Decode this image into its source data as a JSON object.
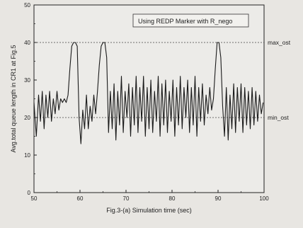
{
  "chart_data": {
    "type": "line",
    "title": "",
    "xlabel": "Fig.3-(a) Simulation time (sec)",
    "ylabel": "Avg.total queue length in CR1 at Fig.5",
    "xlim": [
      50,
      100
    ],
    "ylim": [
      0,
      50
    ],
    "x_ticks": [
      "50",
      "60",
      "70",
      "80",
      "90",
      "100"
    ],
    "y_ticks": [
      "0",
      "10",
      "20",
      "30",
      "40",
      "50"
    ],
    "legend": {
      "text": "Using REDP Marker with R_nego",
      "position": "top-right"
    },
    "reference_lines": [
      {
        "name": "max_ost",
        "label": "max_ost",
        "y": 40
      },
      {
        "name": "min_ost",
        "label": "min_ost",
        "y": 20
      }
    ],
    "series": [
      {
        "values": [
          [
            50,
            24
          ],
          [
            50.5,
            15
          ],
          [
            51,
            26
          ],
          [
            51.4,
            19
          ],
          [
            51.8,
            27
          ],
          [
            52.2,
            17
          ],
          [
            52.6,
            26
          ],
          [
            53,
            20
          ],
          [
            53.4,
            27
          ],
          [
            53.8,
            19
          ],
          [
            54.2,
            25
          ],
          [
            54.6,
            21
          ],
          [
            55,
            27
          ],
          [
            55.4,
            22
          ],
          [
            55.8,
            25
          ],
          [
            56.2,
            24
          ],
          [
            56.6,
            25
          ],
          [
            57,
            24
          ],
          [
            57.4,
            26
          ],
          [
            57.8,
            33
          ],
          [
            58.2,
            39
          ],
          [
            58.6,
            40
          ],
          [
            59,
            40
          ],
          [
            59.4,
            39
          ],
          [
            59.8,
            20
          ],
          [
            60.2,
            13
          ],
          [
            60.6,
            22
          ],
          [
            61,
            17
          ],
          [
            61.4,
            26
          ],
          [
            61.8,
            17
          ],
          [
            62.2,
            23
          ],
          [
            62.6,
            19
          ],
          [
            63,
            26
          ],
          [
            63.4,
            21
          ],
          [
            63.8,
            27
          ],
          [
            64.2,
            34
          ],
          [
            64.6,
            39
          ],
          [
            65,
            40
          ],
          [
            65.4,
            40
          ],
          [
            65.8,
            36
          ],
          [
            66.2,
            16
          ],
          [
            66.6,
            27
          ],
          [
            67,
            17
          ],
          [
            67.4,
            29
          ],
          [
            67.8,
            14
          ],
          [
            68.2,
            27
          ],
          [
            68.6,
            18
          ],
          [
            69,
            31
          ],
          [
            69.4,
            16
          ],
          [
            69.8,
            27
          ],
          [
            70.2,
            20
          ],
          [
            70.6,
            29
          ],
          [
            71,
            15
          ],
          [
            71.4,
            28
          ],
          [
            71.8,
            18
          ],
          [
            72.2,
            31
          ],
          [
            72.6,
            16
          ],
          [
            73,
            28
          ],
          [
            73.4,
            19
          ],
          [
            73.8,
            31
          ],
          [
            74.2,
            15
          ],
          [
            74.6,
            28
          ],
          [
            75,
            17
          ],
          [
            75.4,
            30
          ],
          [
            75.8,
            16
          ],
          [
            76.2,
            27
          ],
          [
            76.6,
            19
          ],
          [
            77,
            31
          ],
          [
            77.4,
            15
          ],
          [
            77.8,
            29
          ],
          [
            78.2,
            18
          ],
          [
            78.6,
            30
          ],
          [
            79,
            16
          ],
          [
            79.4,
            27
          ],
          [
            79.8,
            19
          ],
          [
            80.2,
            30
          ],
          [
            80.6,
            15
          ],
          [
            81,
            28
          ],
          [
            81.4,
            18
          ],
          [
            81.8,
            31
          ],
          [
            82.2,
            17
          ],
          [
            82.6,
            28
          ],
          [
            83,
            20
          ],
          [
            83.4,
            30
          ],
          [
            83.8,
            16
          ],
          [
            84.2,
            28
          ],
          [
            84.6,
            18
          ],
          [
            85,
            31
          ],
          [
            85.4,
            15
          ],
          [
            85.8,
            28
          ],
          [
            86.2,
            19
          ],
          [
            86.6,
            29
          ],
          [
            87,
            18
          ],
          [
            87.4,
            26
          ],
          [
            87.8,
            21
          ],
          [
            88.2,
            28
          ],
          [
            88.6,
            22
          ],
          [
            89,
            25
          ],
          [
            89.4,
            33
          ],
          [
            89.8,
            40
          ],
          [
            90.2,
            40
          ],
          [
            90.6,
            36
          ],
          [
            91,
            23
          ],
          [
            91.4,
            15
          ],
          [
            91.8,
            28
          ],
          [
            92.2,
            14
          ],
          [
            92.6,
            26
          ],
          [
            93,
            17
          ],
          [
            93.4,
            29
          ],
          [
            93.8,
            16
          ],
          [
            94.2,
            28
          ],
          [
            94.6,
            19
          ],
          [
            95,
            29
          ],
          [
            95.4,
            16
          ],
          [
            95.8,
            28
          ],
          [
            96.2,
            18
          ],
          [
            96.6,
            27
          ],
          [
            97,
            17
          ],
          [
            97.4,
            28
          ],
          [
            97.8,
            18
          ],
          [
            98.2,
            27
          ],
          [
            98.6,
            19
          ],
          [
            99,
            26
          ],
          [
            99.4,
            21
          ],
          [
            99.8,
            24
          ]
        ]
      }
    ]
  }
}
